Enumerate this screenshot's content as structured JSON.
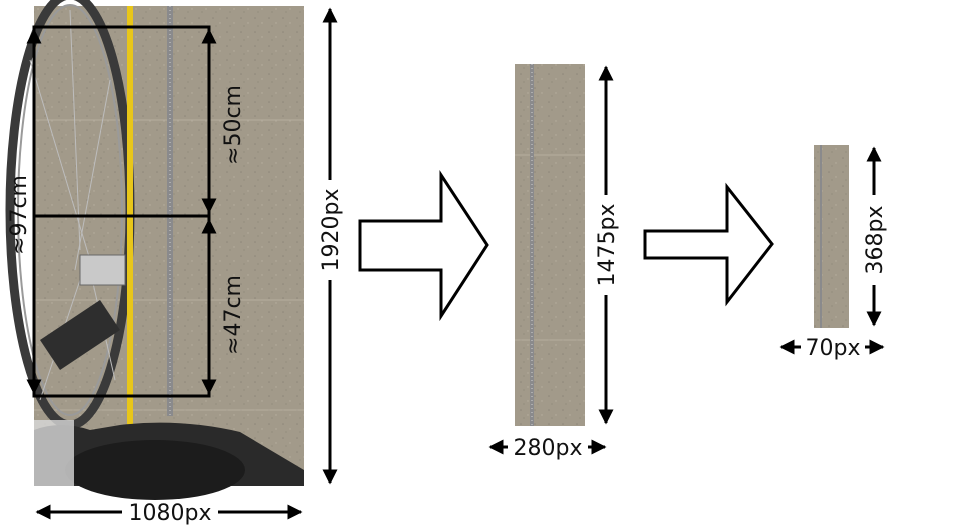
{
  "diagram": {
    "original": {
      "width_label": "1080px",
      "height_label": "1920px",
      "total_label": "≈97cm",
      "upper_label": "≈50cm",
      "lower_label": "≈47cm"
    },
    "crop": {
      "width_label": "280px",
      "height_label": "1475px"
    },
    "resized": {
      "width_label": "70px",
      "height_label": "368px"
    },
    "colors": {
      "floor": "#a29a8a",
      "tape": "#e8c61a",
      "ruler": "#8a8a8c",
      "line": "#000000"
    },
    "icons": [
      "arrow-right-icon",
      "arrow-right-icon"
    ]
  }
}
